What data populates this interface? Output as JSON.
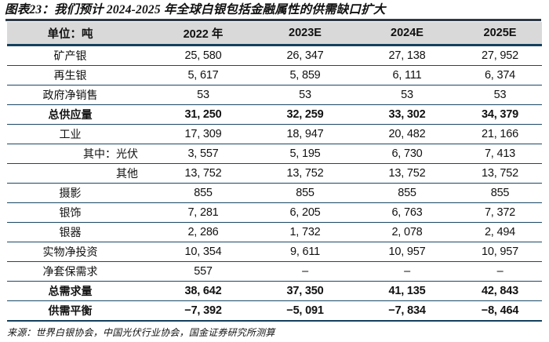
{
  "title": "图表23：我们预计 2024-2025 年全球白银包括金融属性的供需缺口扩大",
  "source": "来源：世界白银协会，中国光伏行业协会，国金证券研究所测算",
  "colors": {
    "header_bg": "#d9d9d9",
    "top_rule": "#2e3a47",
    "row_line": "#1a4866",
    "thick_line": "#14405e",
    "text": "#111111"
  },
  "table": {
    "columns": [
      "单位：吨",
      "2022 年",
      "2023E",
      "2024E",
      "2025E"
    ],
    "rows": [
      {
        "label": "矿产银",
        "indent": 0,
        "bold": false,
        "values": [
          "25, 580",
          "26, 347",
          "27, 138",
          "27, 952"
        ]
      },
      {
        "label": "再生银",
        "indent": 0,
        "bold": false,
        "values": [
          "5, 617",
          "5, 859",
          "6, 111",
          "6, 374"
        ]
      },
      {
        "label": "政府净销售",
        "indent": 0,
        "bold": false,
        "values": [
          "53",
          "53",
          "53",
          "53"
        ]
      },
      {
        "label": "总供应量",
        "indent": 0,
        "bold": true,
        "values": [
          "31, 250",
          "32, 259",
          "33, 302",
          "34, 379"
        ]
      },
      {
        "label": "工业",
        "indent": 0,
        "bold": false,
        "values": [
          "17, 309",
          "18, 947",
          "20, 482",
          "21, 166"
        ]
      },
      {
        "label": "其中：光伏",
        "indent": 1,
        "bold": false,
        "values": [
          "3, 557",
          "5, 195",
          "6, 730",
          "7, 413"
        ]
      },
      {
        "label": "其他",
        "indent": 2,
        "bold": false,
        "values": [
          "13, 752",
          "13, 752",
          "13, 752",
          "13, 752"
        ]
      },
      {
        "label": "摄影",
        "indent": 0,
        "bold": false,
        "values": [
          "855",
          "855",
          "855",
          "855"
        ]
      },
      {
        "label": "银饰",
        "indent": 0,
        "bold": false,
        "values": [
          "7, 281",
          "6, 205",
          "6, 763",
          "7, 372"
        ]
      },
      {
        "label": "银器",
        "indent": 0,
        "bold": false,
        "values": [
          "2, 286",
          "1, 732",
          "2, 078",
          "2, 494"
        ]
      },
      {
        "label": "实物净投资",
        "indent": 0,
        "bold": false,
        "values": [
          "10, 354",
          "9, 611",
          "10, 957",
          "10, 957"
        ]
      },
      {
        "label": "净套保需求",
        "indent": 0,
        "bold": false,
        "values": [
          "557",
          "–",
          "–",
          "–"
        ]
      },
      {
        "label": "总需求量",
        "indent": 0,
        "bold": true,
        "values": [
          "38, 642",
          "37, 350",
          "41, 135",
          "42, 843"
        ]
      },
      {
        "label": "供需平衡",
        "indent": 0,
        "bold": true,
        "values": [
          "−7, 392",
          "−5, 091",
          "−7, 834",
          "−8, 464"
        ]
      }
    ]
  }
}
